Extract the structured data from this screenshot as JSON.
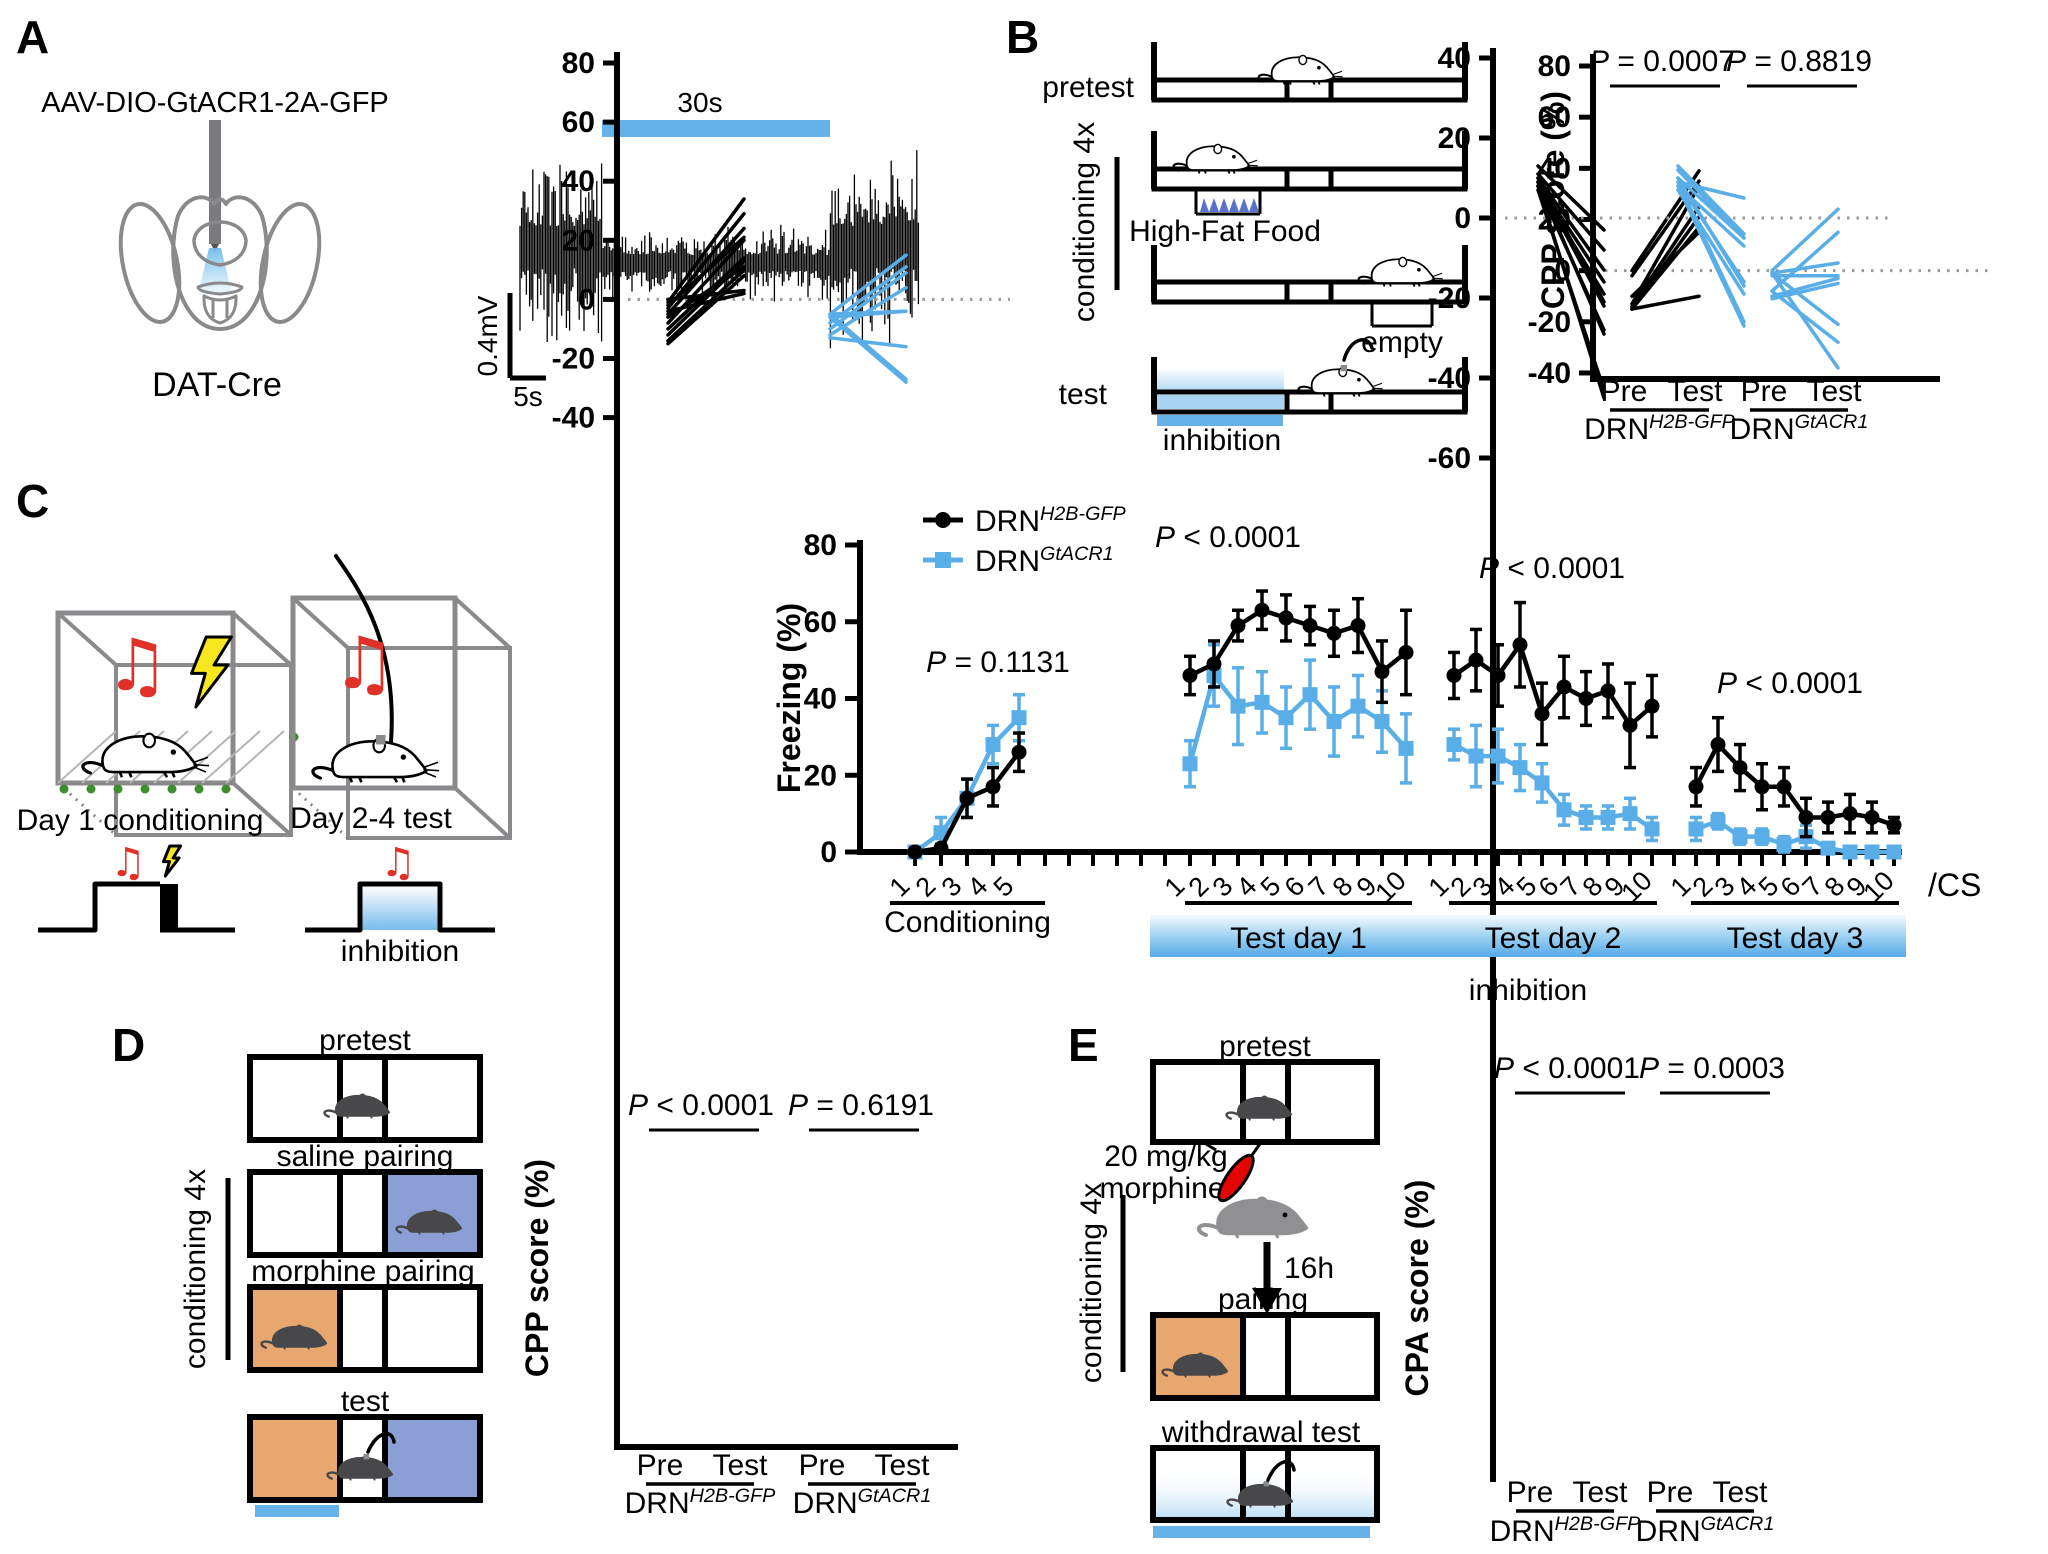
{
  "colors": {
    "accent_blue": "#5AAEE8",
    "light_blue_fill": "#A8D4F2",
    "bar_blue": "#64B2E8",
    "orange_chamber": "#E7A76F",
    "purple_chamber": "#8B9ED6",
    "mouse_dark": "#48484A",
    "mouse_gray": "#909092",
    "red": "#DF3128",
    "syringe_red": "#E30505",
    "yellow": "#F6E71E",
    "green": "#3E8E2E",
    "food_blue": "#5872CE",
    "line_gray": "#8A8A8C"
  },
  "panelA": {
    "label": "A",
    "injection": "AAV-DIO-GtACR1-2A-GFP",
    "mouse_line": "DAT-Cre",
    "bar_label": "30s",
    "vscale": "0.4mV",
    "hscale": "5s"
  },
  "panelB": {
    "label": "B",
    "pretest": "pretest",
    "conditioning": "conditioning 4x",
    "food": "High-Fat Food",
    "empty": "empty",
    "test": "test",
    "inhibition": "inhibition"
  },
  "panelC": {
    "label": "C",
    "box1_caption": "Day 1 conditioning",
    "box2_caption": "Day 2-4 test",
    "timeline_inhibition": "inhibition"
  },
  "panelD": {
    "label": "D",
    "pretest": "pretest",
    "saline": "saline pairing",
    "morphine": "morphine pairing",
    "conditioning": "conditioning 4x",
    "test": "test"
  },
  "panelE": {
    "label": "E",
    "pretest": "pretest",
    "dose_line1": "20 mg/kg",
    "dose_line2": "morphine",
    "delay": "16h",
    "pairing": "pairing",
    "withdrawal": "withdrawal test",
    "conditioning": "conditioning 4x"
  },
  "chart_data": [
    {
      "id": "B",
      "type": "paired-line",
      "ylabel": "CPP score (%)",
      "ylim": [
        -40,
        80
      ],
      "yticks": [
        80,
        60,
        40,
        20,
        0,
        -20,
        -40
      ],
      "xlabels": [
        "Pre",
        "Test"
      ],
      "groups": [
        {
          "base": "DRN",
          "sup": "H2B-GFP",
          "color": "#000000",
          "p": "P = 0.0007",
          "pairs": [
            [
              0,
              39
            ],
            [
              -2,
              35
            ],
            [
              -13,
              33
            ],
            [
              -14,
              25
            ],
            [
              -15,
              21
            ],
            [
              -15,
              17
            ],
            [
              -10,
              15
            ],
            [
              -15,
              -10
            ]
          ]
        },
        {
          "base": "DRN",
          "sup": "GtACR1",
          "color": "#5AAEE8",
          "p": "P = 0.8819",
          "pairs": [
            [
              0,
              24
            ],
            [
              -8,
              15
            ],
            [
              -1,
              3
            ],
            [
              -2,
              -2
            ],
            [
              -10,
              -3
            ],
            [
              -11,
              -5
            ],
            [
              -1,
              -21
            ],
            [
              -8,
              -28
            ],
            [
              -1,
              -38
            ]
          ]
        }
      ]
    },
    {
      "id": "C",
      "type": "line-errorbar",
      "ylabel": "Freezing (%)",
      "ylim": [
        0,
        80
      ],
      "yticks": [
        0,
        20,
        40,
        60,
        80
      ],
      "xunit": "/CS",
      "inhibition_label": "inhibition",
      "legend": [
        {
          "base": "DRN",
          "sup": "H2B-GFP",
          "color": "#000000",
          "marker": "circle"
        },
        {
          "base": "DRN",
          "sup": "GtACR1",
          "color": "#5AAEE8",
          "marker": "square"
        }
      ],
      "segments": [
        {
          "label": "Conditioning",
          "p": "P = 0.1131",
          "ticks": [
            "1",
            "2",
            "3",
            "4",
            "5"
          ],
          "series": [
            {
              "name": "DRNH2B-GFP",
              "color": "#000000",
              "mean": [
                0,
                1,
                14,
                17,
                26
              ],
              "err": [
                1,
                1,
                5,
                5,
                5
              ]
            },
            {
              "name": "DRNGtACR1",
              "color": "#5AAEE8",
              "mean": [
                0,
                5,
                14,
                28,
                35
              ],
              "err": [
                1,
                4,
                5,
                5,
                6
              ]
            }
          ]
        },
        {
          "label": "Test day 1",
          "p": "P < 0.0001",
          "ticks": [
            "1",
            "2",
            "3",
            "4",
            "5",
            "6",
            "7",
            "8",
            "9",
            "10"
          ],
          "series": [
            {
              "name": "DRNH2B-GFP",
              "color": "#000000",
              "mean": [
                46,
                49,
                59,
                63,
                61,
                59,
                57,
                59,
                47,
                52
              ],
              "err": [
                5,
                6,
                4,
                5,
                6,
                5,
                6,
                7,
                8,
                11
              ]
            },
            {
              "name": "DRNGtACR1",
              "color": "#5AAEE8",
              "mean": [
                23,
                46,
                38,
                39,
                35,
                41,
                34,
                38,
                34,
                27
              ],
              "err": [
                6,
                8,
                10,
                8,
                8,
                9,
                9,
                8,
                8,
                9
              ]
            }
          ]
        },
        {
          "label": "Test day 2",
          "p": "P < 0.0001",
          "ticks": [
            "1",
            "2",
            "3",
            "4",
            "5",
            "6",
            "7",
            "8",
            "9",
            "10"
          ],
          "series": [
            {
              "name": "DRNH2B-GFP",
              "color": "#000000",
              "mean": [
                46,
                50,
                46,
                54,
                36,
                43,
                40,
                42,
                33,
                38
              ],
              "err": [
                6,
                8,
                8,
                11,
                8,
                8,
                7,
                7,
                11,
                8
              ]
            },
            {
              "name": "DRNGtACR1",
              "color": "#5AAEE8",
              "mean": [
                28,
                25,
                25,
                22,
                18,
                11,
                9,
                9,
                10,
                6
              ],
              "err": [
                4,
                8,
                7,
                6,
                5,
                4,
                3,
                3,
                4,
                3
              ]
            }
          ]
        },
        {
          "label": "Test day 3",
          "p": "P < 0.0001",
          "ticks": [
            "1",
            "2",
            "3",
            "4",
            "5",
            "6",
            "7",
            "8",
            "9",
            "10"
          ],
          "series": [
            {
              "name": "DRNH2B-GFP",
              "color": "#000000",
              "mean": [
                17,
                28,
                22,
                17,
                17,
                9,
                9,
                10,
                9,
                7
              ],
              "err": [
                5,
                7,
                6,
                6,
                5,
                5,
                4,
                5,
                4,
                2
              ]
            },
            {
              "name": "DRNGtACR1",
              "color": "#5AAEE8",
              "mean": [
                6,
                8,
                4,
                4,
                2,
                4,
                1,
                0,
                0,
                0
              ],
              "err": [
                3,
                2,
                2,
                2,
                2,
                3,
                1,
                1,
                1,
                1
              ]
            }
          ]
        }
      ]
    },
    {
      "id": "D",
      "type": "paired-line",
      "ylabel": "CPP score (%)",
      "ylim": [
        -40,
        80
      ],
      "yticks": [
        80,
        60,
        40,
        20,
        0,
        -20,
        -40
      ],
      "xlabels": [
        "Pre",
        "Test"
      ],
      "groups": [
        {
          "base": "DRN",
          "sup": "H2B-GFP",
          "color": "#000000",
          "p": "P < 0.0001",
          "pairs": [
            [
              -1,
              34
            ],
            [
              -3,
              29
            ],
            [
              -5,
              24
            ],
            [
              -2,
              21
            ],
            [
              -8,
              20
            ],
            [
              -10,
              14
            ],
            [
              -12,
              13
            ],
            [
              -6,
              11
            ],
            [
              -14,
              10
            ],
            [
              -15,
              8
            ],
            [
              0,
              3
            ],
            [
              -4,
              2
            ]
          ]
        },
        {
          "base": "DRN",
          "sup": "GtACR1",
          "color": "#5AAEE8",
          "p": "P = 0.6191",
          "pairs": [
            [
              -5,
              15
            ],
            [
              -8,
              11
            ],
            [
              -10,
              9
            ],
            [
              -12,
              4
            ],
            [
              -5,
              -4
            ],
            [
              -6,
              -4
            ],
            [
              -13,
              -16
            ],
            [
              -5,
              -27
            ],
            [
              -6,
              -28
            ]
          ]
        }
      ]
    },
    {
      "id": "E",
      "type": "paired-line",
      "ylabel": "CPA score (%)",
      "ylim": [
        -60,
        40
      ],
      "yticks": [
        40,
        20,
        0,
        -20,
        -40,
        -60
      ],
      "xlabels": [
        "Pre",
        "Test"
      ],
      "groups": [
        {
          "base": "DRN",
          "sup": "H2B-GFP",
          "color": "#000000",
          "p": "P < 0.0001",
          "pairs": [
            [
              13,
              -3
            ],
            [
              11,
              -8
            ],
            [
              10,
              -13
            ],
            [
              9,
              -16
            ],
            [
              8,
              -19
            ],
            [
              10,
              -21
            ],
            [
              9,
              -22
            ],
            [
              8,
              -28
            ],
            [
              9,
              -29
            ],
            [
              7,
              -43
            ],
            [
              8,
              -45
            ]
          ]
        },
        {
          "base": "DRN",
          "sup": "GtACR1",
          "color": "#5AAEE8",
          "p": "P = 0.0003",
          "pairs": [
            [
              9,
              5
            ],
            [
              13,
              -4
            ],
            [
              12,
              -5
            ],
            [
              10,
              -5
            ],
            [
              8,
              -7
            ],
            [
              9,
              -16
            ],
            [
              10,
              -17
            ],
            [
              7,
              -19
            ],
            [
              9,
              -26
            ],
            [
              8,
              -27
            ]
          ]
        }
      ]
    }
  ]
}
